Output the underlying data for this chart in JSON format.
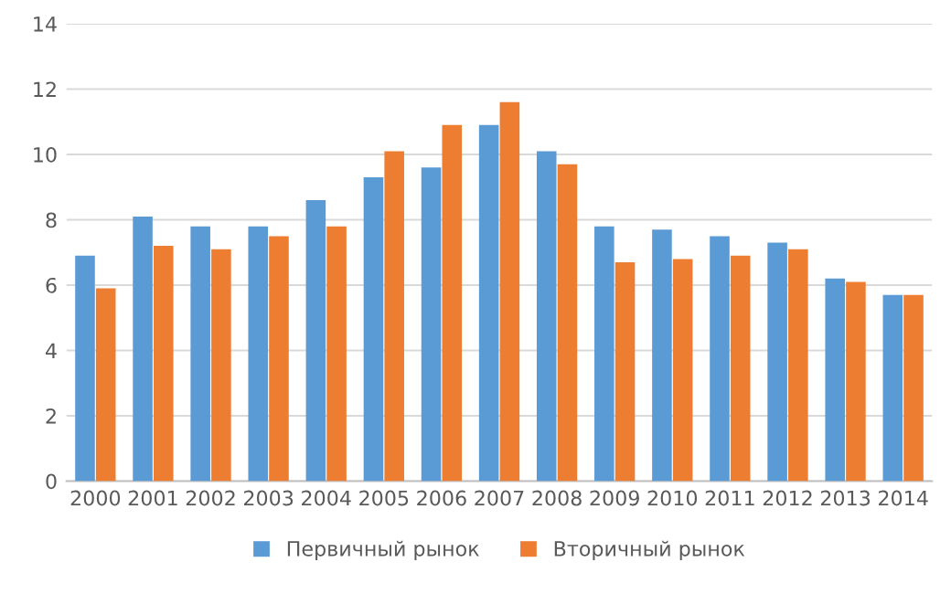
{
  "chart_data": {
    "type": "bar",
    "categories": [
      "2000",
      "2001",
      "2002",
      "2003",
      "2004",
      "2005",
      "2006",
      "2007",
      "2008",
      "2009",
      "2010",
      "2011",
      "2012",
      "2013",
      "2014"
    ],
    "series": [
      {
        "name": "Первичный рынок",
        "color": "#5b9bd5",
        "values": [
          6.9,
          8.1,
          7.8,
          7.8,
          8.6,
          9.3,
          9.6,
          10.9,
          10.1,
          7.8,
          7.7,
          7.5,
          7.3,
          6.2,
          5.7
        ]
      },
      {
        "name": "Вторичный рынок",
        "color": "#ed7d31",
        "values": [
          5.9,
          7.2,
          7.1,
          7.5,
          7.8,
          10.1,
          10.9,
          11.6,
          9.7,
          6.7,
          6.8,
          6.9,
          7.1,
          6.1,
          5.7
        ]
      }
    ],
    "ylim": [
      0,
      14
    ],
    "yticks": [
      0,
      2,
      4,
      6,
      8,
      10,
      12,
      14
    ],
    "grid": "y",
    "legend": "bottom"
  }
}
